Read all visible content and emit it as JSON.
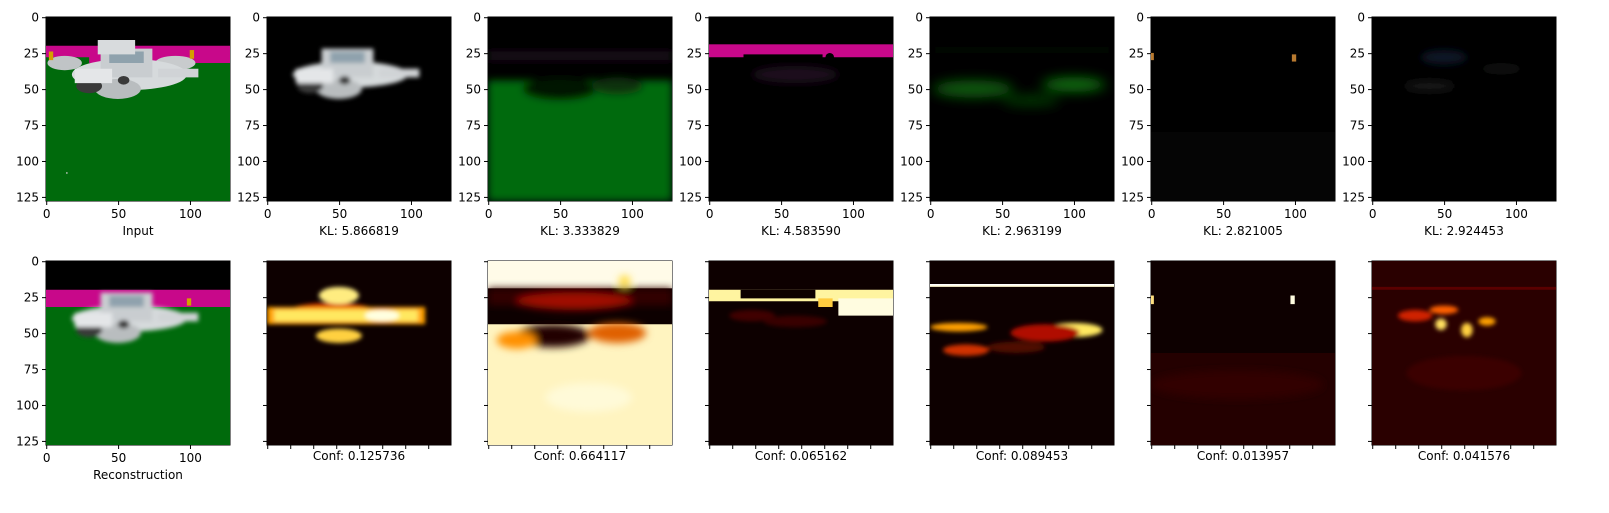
{
  "chart_data": [
    {
      "type": "image",
      "xlabel": "Input",
      "xticks": [
        "0",
        "50",
        "100"
      ],
      "yticks": [
        "0",
        "25",
        "50",
        "75",
        "100",
        "125"
      ],
      "scene": "input"
    },
    {
      "type": "image",
      "xlabel": "KL: 5.866819",
      "xticks": [
        "0",
        "50",
        "100"
      ],
      "yticks": [
        "0",
        "25",
        "50",
        "75",
        "100",
        "125"
      ],
      "scene": "car"
    },
    {
      "type": "image",
      "xlabel": "KL: 3.333829",
      "xticks": [
        "0",
        "50",
        "100"
      ],
      "yticks": [
        "0",
        "25",
        "50",
        "75",
        "100",
        "125"
      ],
      "scene": "ground"
    },
    {
      "type": "image",
      "xlabel": "KL: 4.583590",
      "xticks": [
        "0",
        "50",
        "100"
      ],
      "yticks": [
        "0",
        "25",
        "50",
        "75",
        "100",
        "125"
      ],
      "scene": "sky"
    },
    {
      "type": "image",
      "xlabel": "KL: 2.963199",
      "xticks": [
        "0",
        "50",
        "100"
      ],
      "yticks": [
        "0",
        "25",
        "50",
        "75",
        "100",
        "125"
      ],
      "scene": "greenfaint"
    },
    {
      "type": "image",
      "xlabel": "KL: 2.821005",
      "xticks": [
        "0",
        "50",
        "100"
      ],
      "yticks": [
        "0",
        "25",
        "50",
        "75",
        "100",
        "125"
      ],
      "scene": "dark1"
    },
    {
      "type": "image",
      "xlabel": "KL: 2.924453",
      "xticks": [
        "0",
        "50",
        "100"
      ],
      "yticks": [
        "0",
        "25",
        "50",
        "75",
        "100",
        "125"
      ],
      "scene": "dark2"
    },
    {
      "type": "image",
      "xlabel": "Reconstruction",
      "xticks": [
        "0",
        "50",
        "100"
      ],
      "yticks": [
        "0",
        "25",
        "50",
        "75",
        "100",
        "125"
      ],
      "scene": "recon"
    },
    {
      "type": "heatmap",
      "xlabel": "Conf: 0.125736",
      "xticks": [],
      "yticks": [],
      "scene": "h_car",
      "colormap": "hot"
    },
    {
      "type": "heatmap",
      "xlabel": "Conf: 0.664117",
      "xticks": [],
      "yticks": [],
      "scene": "h_ground",
      "colormap": "hot"
    },
    {
      "type": "heatmap",
      "xlabel": "Conf: 0.065162",
      "xticks": [],
      "yticks": [],
      "scene": "h_sky",
      "colormap": "hot"
    },
    {
      "type": "heatmap",
      "xlabel": "Conf: 0.089453",
      "xticks": [],
      "yticks": [],
      "scene": "h_green",
      "colormap": "hot"
    },
    {
      "type": "heatmap",
      "xlabel": "Conf: 0.013957",
      "xticks": [],
      "yticks": [],
      "scene": "h_dark1",
      "colormap": "hot"
    },
    {
      "type": "heatmap",
      "xlabel": "Conf: 0.041576",
      "xticks": [],
      "yticks": [],
      "scene": "h_dark2",
      "colormap": "hot"
    }
  ],
  "colors": {
    "sky_magenta": "#c8088a",
    "ground_green": "#006a0c",
    "car_white": "#d6dadc",
    "hot_dark": "#0d0000",
    "hot_red": "#b00000",
    "hot_yellow": "#ffe040",
    "hot_white": "#fffbe8"
  }
}
